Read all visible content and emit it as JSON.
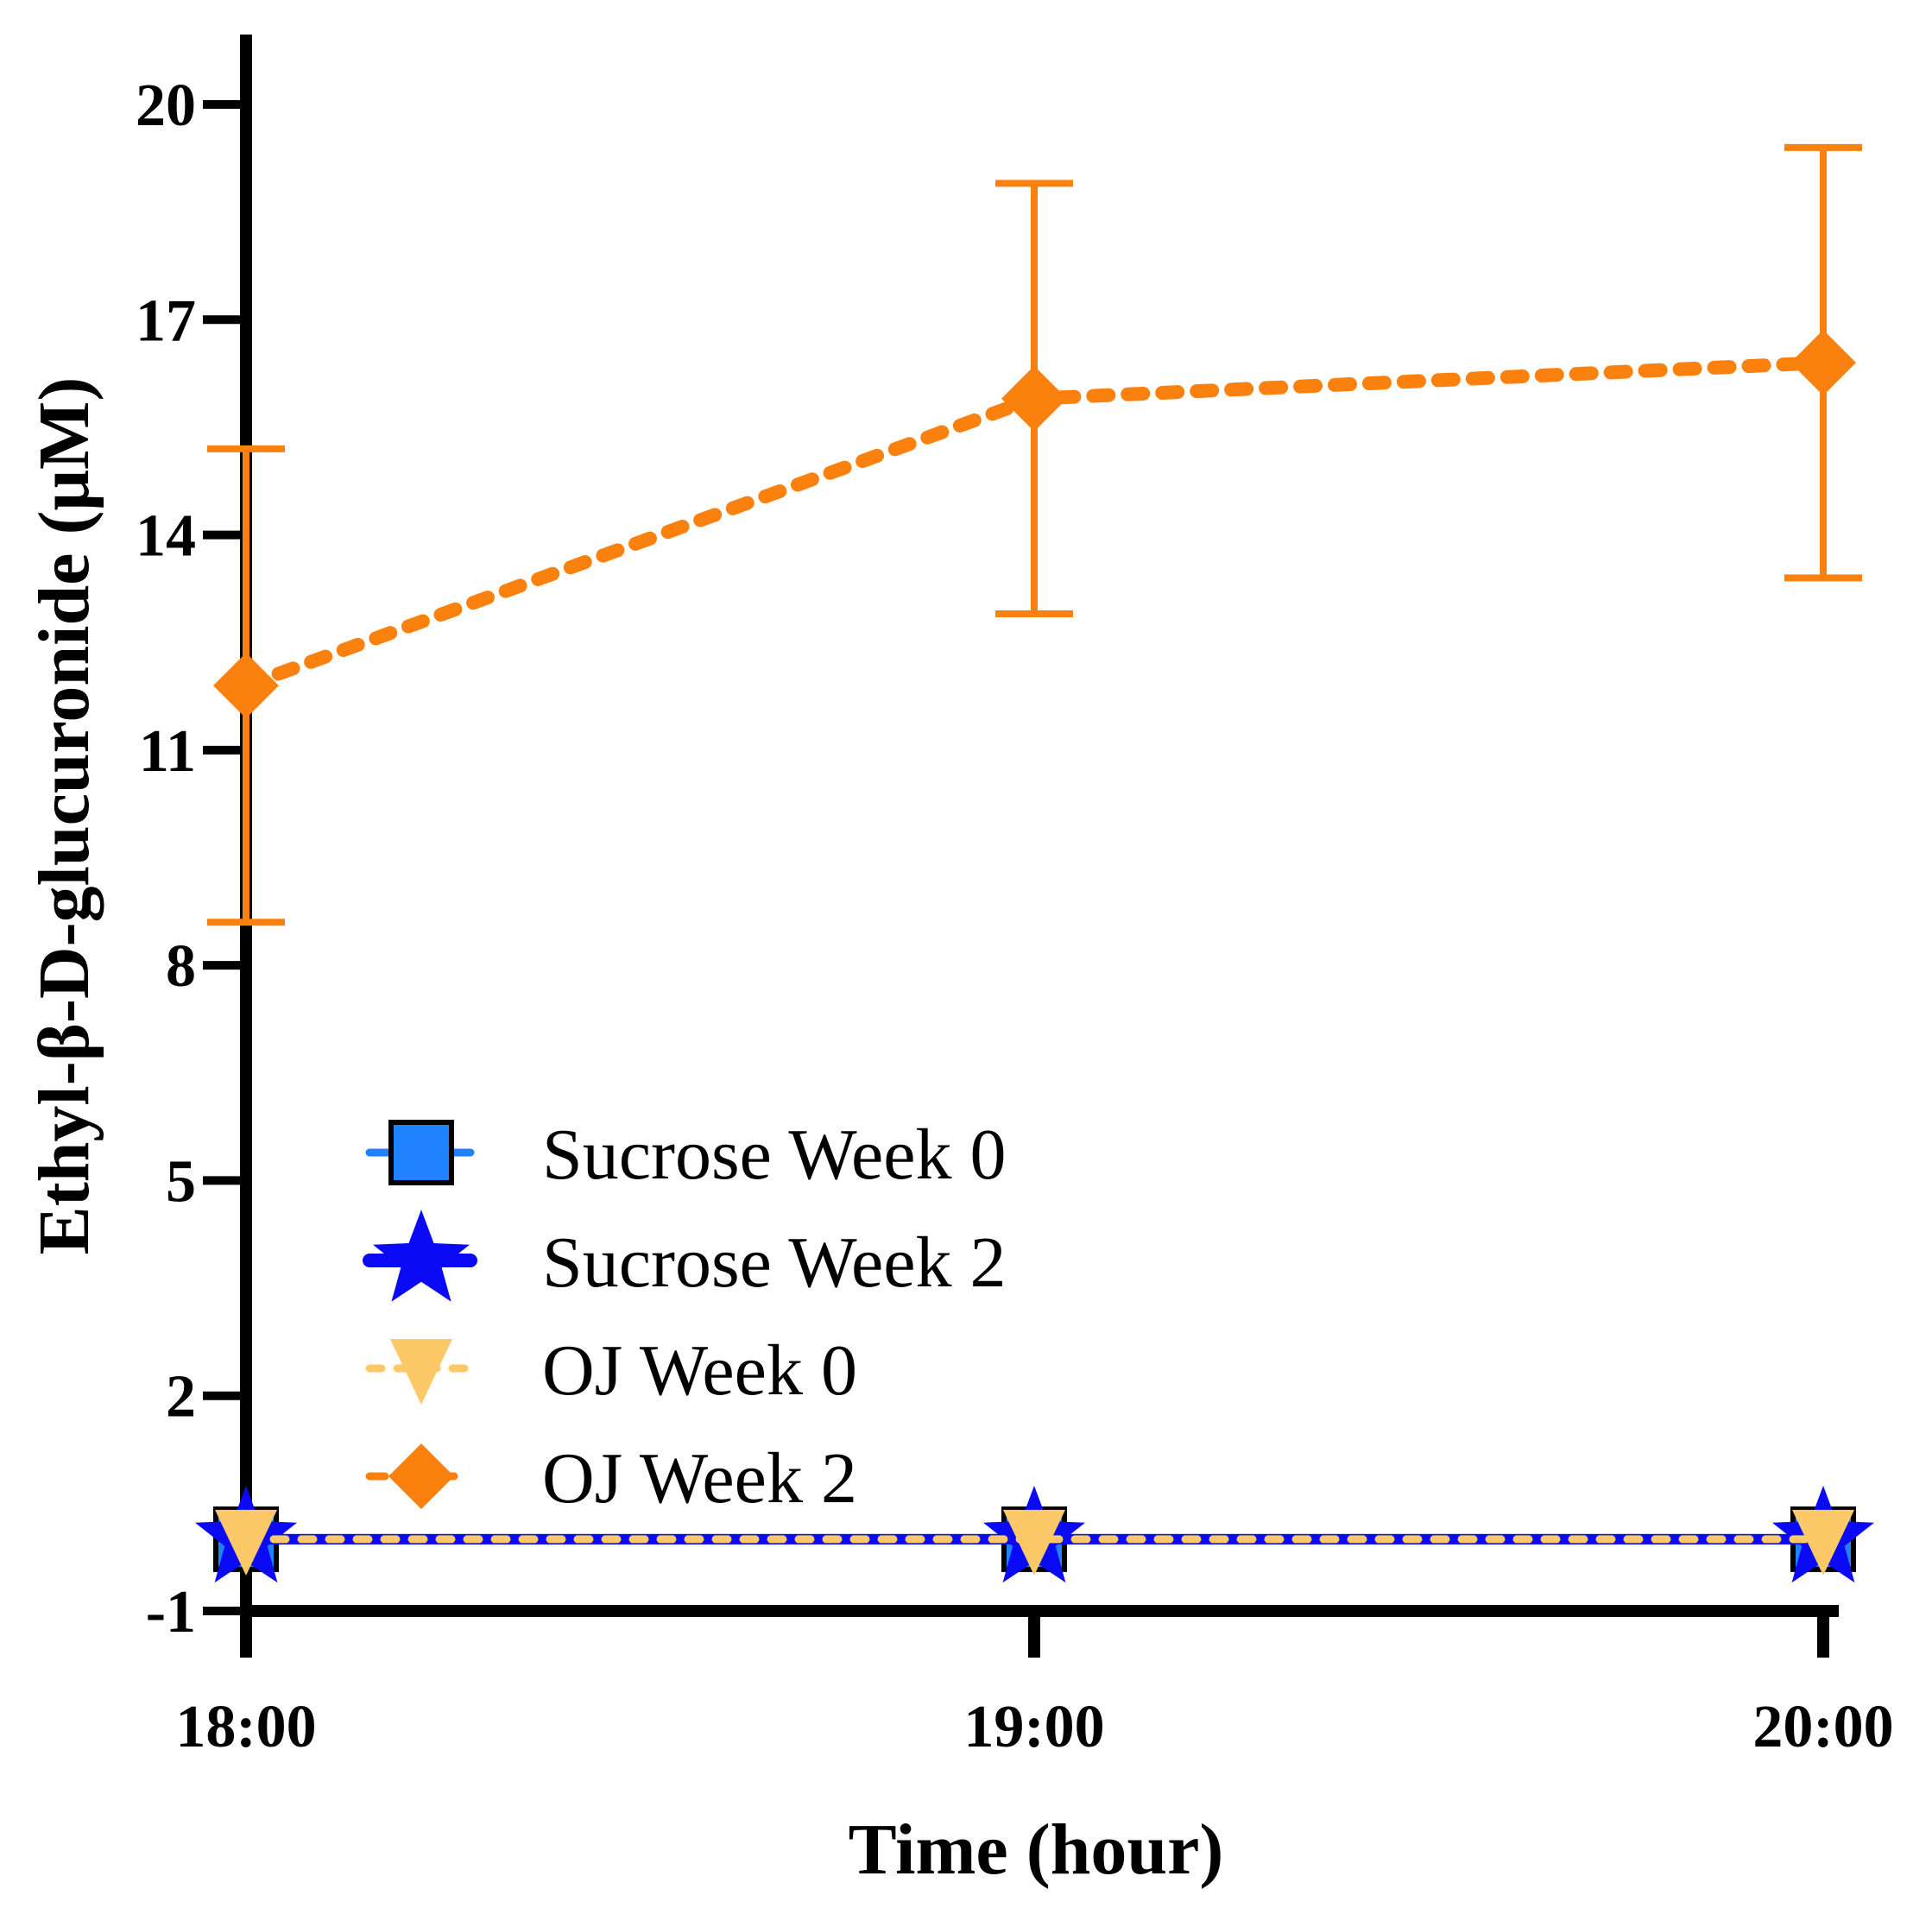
{
  "chart_data": {
    "type": "line",
    "title": "",
    "xlabel": "Time (hour)",
    "ylabel": "Ethyl-β-D-glucuronide (μM)",
    "categories": [
      "18:00",
      "19:00",
      "20:00"
    ],
    "ylim": [
      -1,
      21
    ],
    "yticks": [
      -1,
      2,
      5,
      8,
      11,
      14,
      17,
      20
    ],
    "legend_position": "lower-left",
    "series": [
      {
        "name": "Sucrose Week 0",
        "values": [
          0,
          0,
          0
        ],
        "error": [
          0,
          0,
          0
        ],
        "color": "#1f83ff",
        "marker": "square",
        "line": "solid"
      },
      {
        "name": "Sucrose Week 2",
        "values": [
          0,
          0,
          0
        ],
        "error": [
          0,
          0,
          0
        ],
        "color": "#0a0af5",
        "marker": "star",
        "line": "solid"
      },
      {
        "name": "OJ Week 0",
        "values": [
          0,
          0,
          0
        ],
        "error": [
          0,
          0,
          0
        ],
        "color": "#fcc868",
        "marker": "triangle-down",
        "line": "dotted"
      },
      {
        "name": "OJ Week 2",
        "values": [
          11.9,
          15.9,
          16.4
        ],
        "error": [
          3.3,
          3.0,
          3.0
        ],
        "color": "#fb810f",
        "marker": "diamond",
        "line": "dotted"
      }
    ]
  }
}
